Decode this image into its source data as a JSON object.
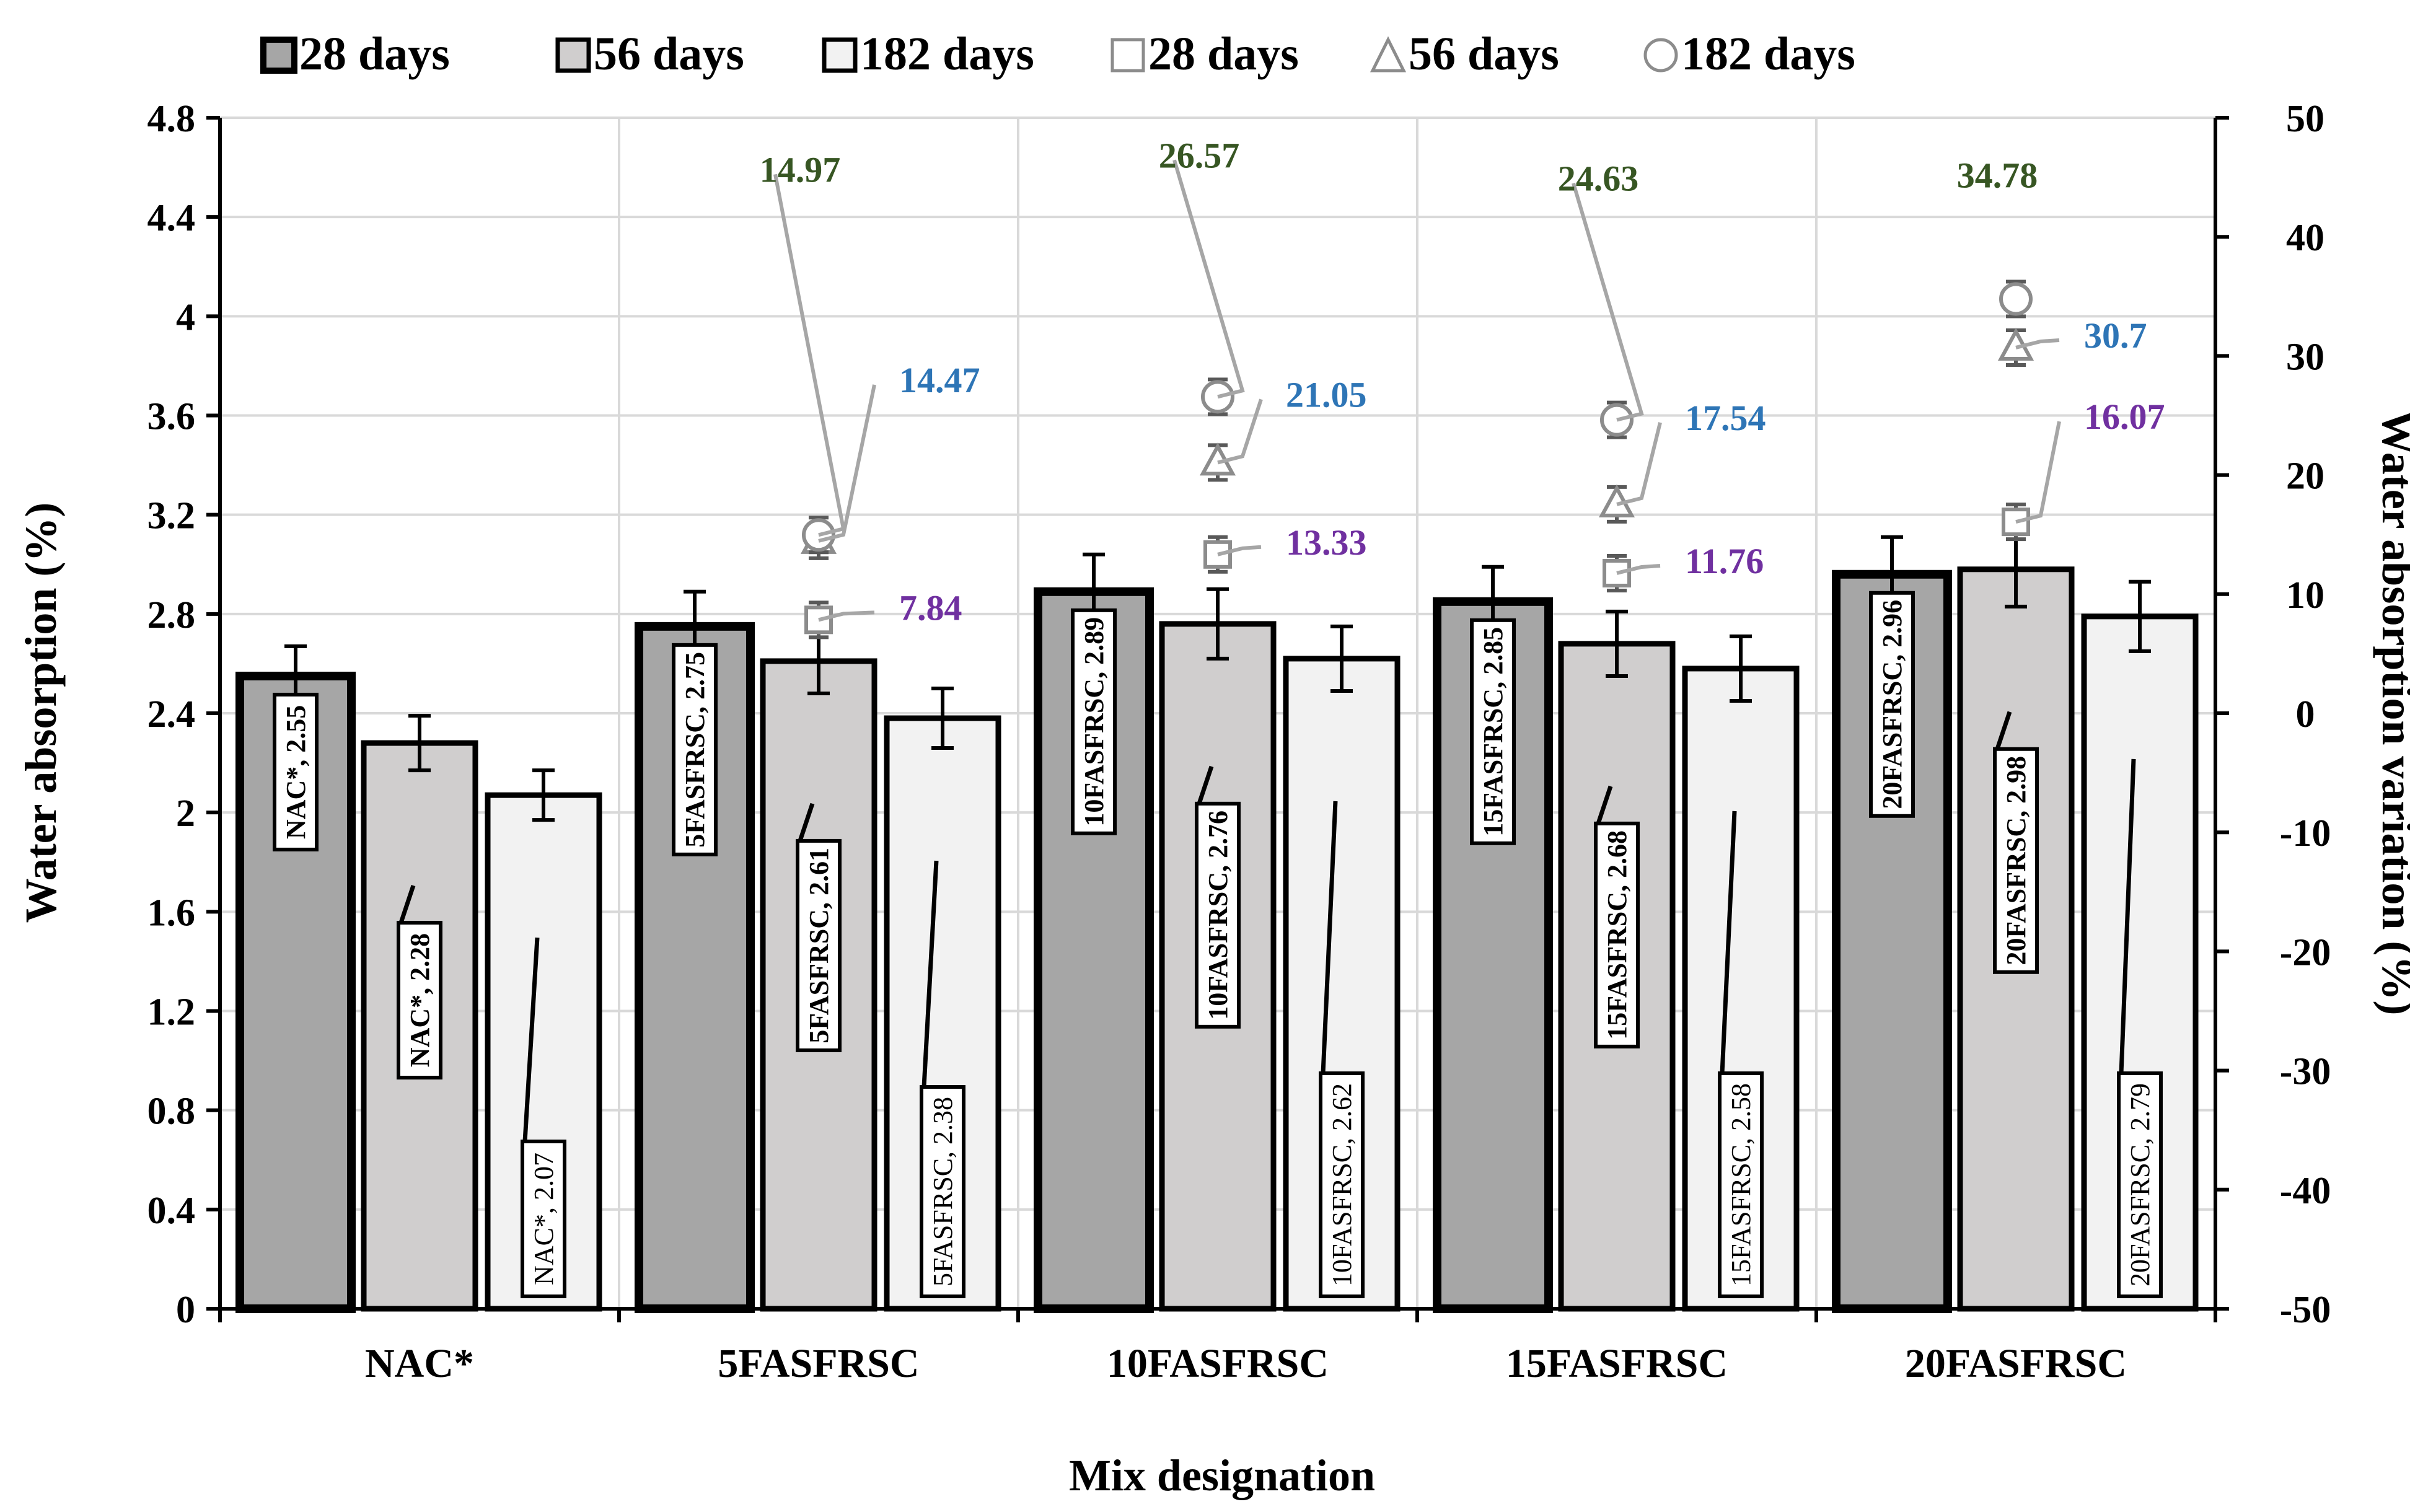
{
  "chart_data": {
    "type": "bar",
    "xlabel": "Mix designation",
    "ylabel": "Water absorption (%)",
    "y2label": "Water absorption variation (%)",
    "ylim": [
      0,
      4.8
    ],
    "y2lim": [
      -50,
      50
    ],
    "yticks": [
      "0",
      "0.4",
      "0.8",
      "1.2",
      "1.6",
      "2",
      "2.4",
      "2.8",
      "3.2",
      "3.6",
      "4",
      "4.4",
      "4.8"
    ],
    "y2ticks": [
      "-50",
      "-40",
      "-30",
      "-20",
      "-10",
      "0",
      "10",
      "20",
      "30",
      "40",
      "50"
    ],
    "categories": [
      "NAC*",
      "5FASFRSC",
      "10FASFRSC",
      "15FASFRSC",
      "20FASFRSC"
    ],
    "legend": [
      "28 days",
      "56 days",
      "182 days",
      "28 days",
      "56 days",
      "182 days"
    ],
    "series": [
      {
        "name": "28 days",
        "axis": "left",
        "kind": "bar",
        "color": "#a6a6a6",
        "values": [
          2.55,
          2.75,
          2.89,
          2.85,
          2.96
        ],
        "errors": [
          0.12,
          0.14,
          0.15,
          0.14,
          0.15
        ],
        "labels": [
          "NAC*, 2.55",
          "5FASFRSC, 2.75",
          "10FASFRSC, 2.89",
          "15FASFRSC, 2.85",
          "20FASFRSC, 2.96"
        ]
      },
      {
        "name": "56 days",
        "axis": "left",
        "kind": "bar",
        "color": "#d0cece",
        "values": [
          2.28,
          2.61,
          2.76,
          2.68,
          2.98
        ],
        "errors": [
          0.11,
          0.13,
          0.14,
          0.13,
          0.15
        ],
        "labels": [
          "NAC*, 2.28",
          "5FASFRSC, 2.61",
          "10FASFRSC, 2.76",
          "15FASFRSC, 2.68",
          "20FASFRSC, 2.98"
        ]
      },
      {
        "name": "182 days",
        "axis": "left",
        "kind": "bar",
        "color": "#f2f2f2",
        "values": [
          2.07,
          2.38,
          2.62,
          2.58,
          2.79
        ],
        "errors": [
          0.1,
          0.12,
          0.13,
          0.13,
          0.14
        ],
        "labels": [
          "NAC*, 2.07",
          "5FASFRSC, 2.38",
          "10FASFRSC, 2.62",
          "15FASFRSC, 2.58",
          "20FASFRSC, 2.79"
        ]
      },
      {
        "name": "28 days",
        "axis": "right",
        "kind": "marker",
        "marker": "square",
        "label_color": "#7030a0",
        "values": [
          null,
          7.84,
          13.33,
          11.76,
          16.07
        ],
        "labels": [
          "",
          "7.84",
          "13.33",
          "11.76",
          "16.07"
        ]
      },
      {
        "name": "56 days",
        "axis": "right",
        "kind": "marker",
        "marker": "triangle",
        "label_color": "#2e75b6",
        "values": [
          null,
          14.47,
          21.05,
          17.54,
          30.7
        ],
        "labels": [
          "",
          "14.47",
          "21.05",
          "17.54",
          "30.7"
        ]
      },
      {
        "name": "182 days",
        "axis": "right",
        "kind": "marker",
        "marker": "circle",
        "label_color": "#375623",
        "values": [
          null,
          14.97,
          26.57,
          24.63,
          34.78
        ],
        "labels": [
          "",
          "14.97",
          "26.57",
          "24.63",
          "34.78"
        ]
      }
    ]
  }
}
